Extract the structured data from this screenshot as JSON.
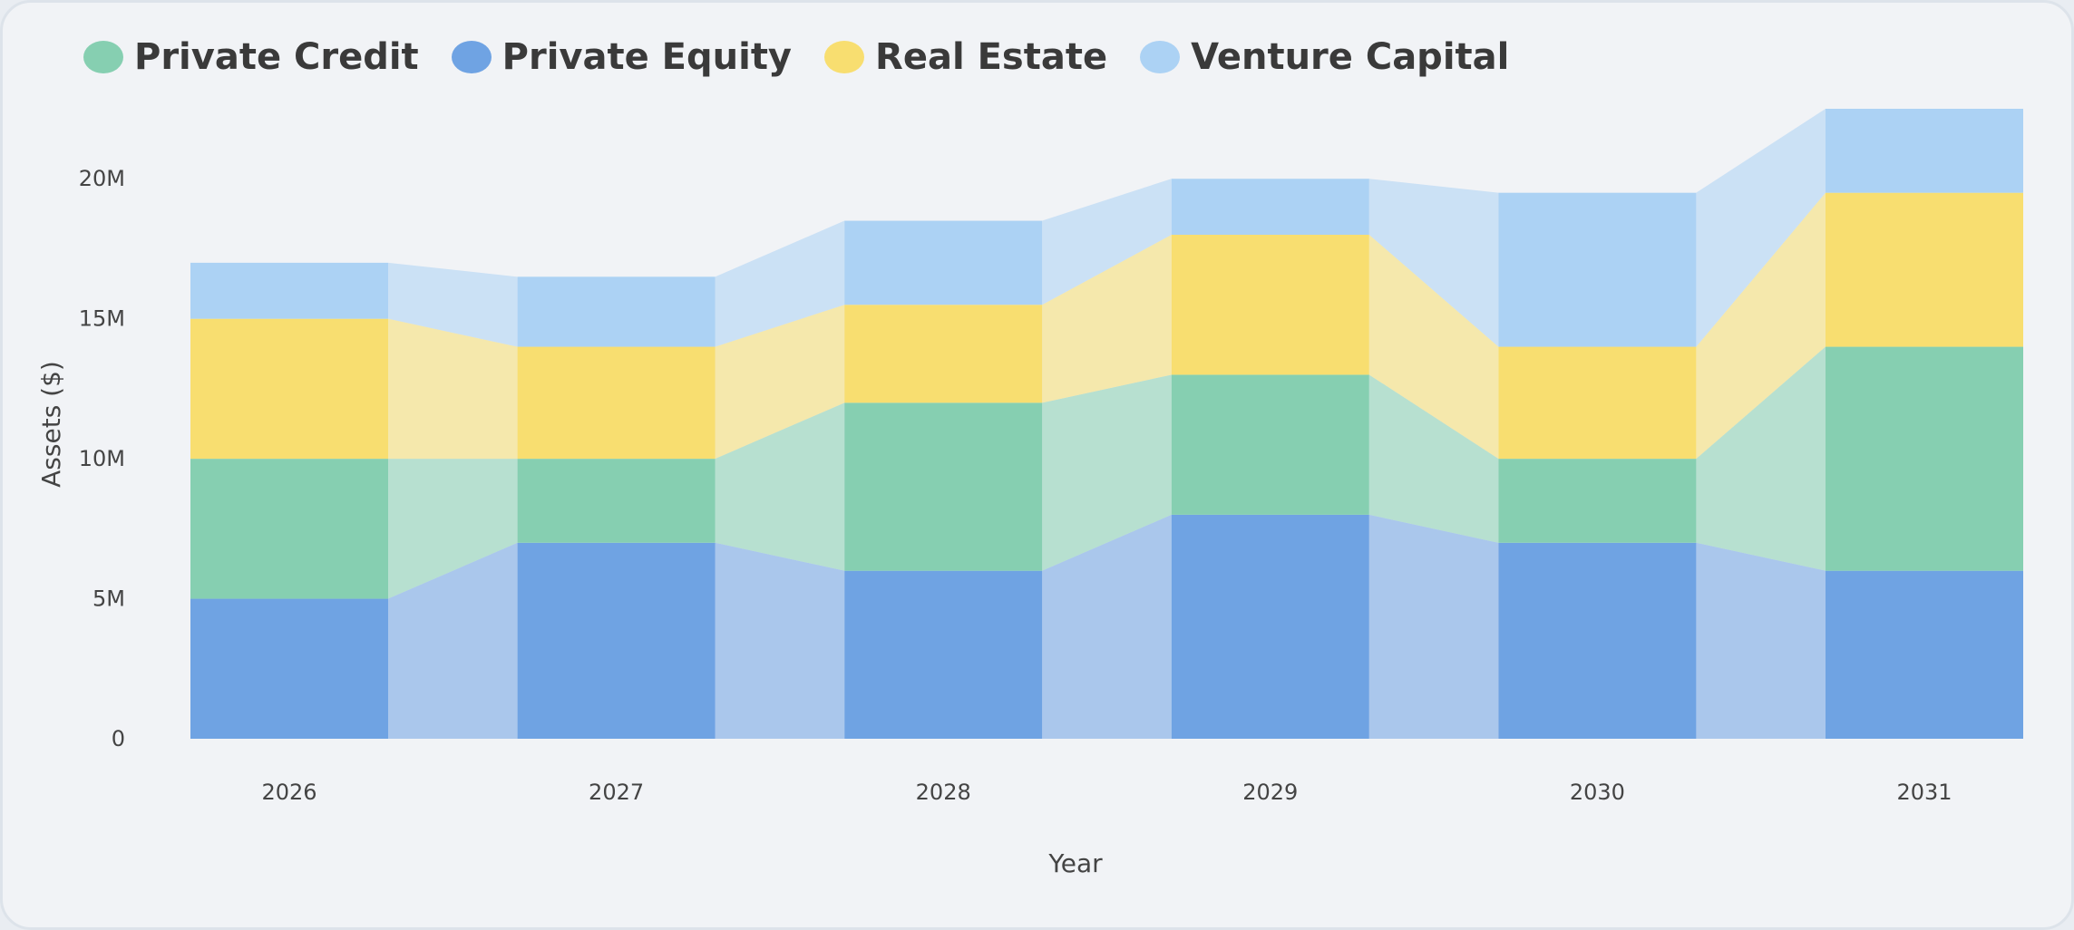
{
  "chart_data": {
    "type": "bar",
    "title": "",
    "xlabel": "Year",
    "ylabel": "Assets ($)",
    "categories": [
      "2026",
      "2027",
      "2028",
      "2029",
      "2030",
      "2031"
    ],
    "ylim": [
      0,
      22.5
    ],
    "y_ticks": [
      {
        "value": 0,
        "label": "0"
      },
      {
        "value": 5,
        "label": "5M"
      },
      {
        "value": 10,
        "label": "10M"
      },
      {
        "value": 15,
        "label": "15M"
      },
      {
        "value": 20,
        "label": "20M"
      }
    ],
    "stacking": "stacked with translucent connector bands between bars",
    "grid": false,
    "legend_position": "top-left",
    "series": [
      {
        "name": "Private Equity",
        "color": "#6fa3e3",
        "values": [
          5,
          7,
          6,
          8,
          7,
          6
        ]
      },
      {
        "name": "Private Credit",
        "color": "#86cfb1",
        "values": [
          5,
          3,
          6,
          5,
          3,
          8
        ]
      },
      {
        "name": "Real Estate",
        "color": "#f8de70",
        "values": [
          5,
          4,
          3.5,
          5,
          4,
          5.5
        ]
      },
      {
        "name": "Venture Capital",
        "color": "#acd2f4",
        "values": [
          2,
          2.5,
          3,
          2,
          5.5,
          3
        ]
      }
    ]
  },
  "legend": [
    {
      "label": "Private Credit",
      "color": "#86cfb1"
    },
    {
      "label": "Private Equity",
      "color": "#6fa3e3"
    },
    {
      "label": "Real Estate",
      "color": "#f8de70"
    },
    {
      "label": "Venture Capital",
      "color": "#acd2f4"
    }
  ]
}
